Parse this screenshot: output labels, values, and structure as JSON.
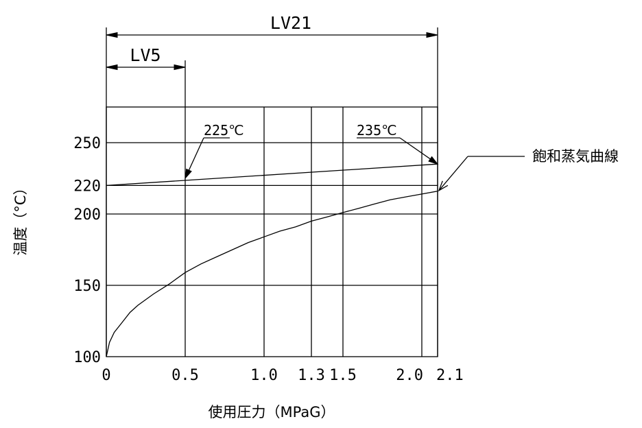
{
  "chart_data": {
    "type": "line",
    "xlabel": "使用圧力（MPaG）",
    "ylabel": "温度（°C）",
    "xlim": [
      0,
      2.1
    ],
    "ylim": [
      100,
      275
    ],
    "x_ticks": [
      {
        "value": 0,
        "label": "0"
      },
      {
        "value": 0.5,
        "label": "0.5"
      },
      {
        "value": 1.0,
        "label": "1.0"
      },
      {
        "value": 1.3,
        "label": "1.3"
      },
      {
        "value": 1.5,
        "label": "1.5"
      },
      {
        "value": 2.0,
        "label": "2.0"
      },
      {
        "value": 2.1,
        "label": "2.1"
      }
    ],
    "y_ticks": [
      {
        "value": 100,
        "label": "100"
      },
      {
        "value": 150,
        "label": "150"
      },
      {
        "value": 200,
        "label": "200"
      },
      {
        "value": 220,
        "label": "220"
      },
      {
        "value": 250,
        "label": "250"
      }
    ],
    "grid": true,
    "series": [
      {
        "name": "",
        "x": [
          0,
          2.1
        ],
        "y": [
          220,
          235
        ]
      },
      {
        "name": "飽和蒸気曲線",
        "x": [
          0,
          0.02,
          0.05,
          0.1,
          0.15,
          0.2,
          0.3,
          0.4,
          0.5,
          0.6,
          0.7,
          0.8,
          0.9,
          1.0,
          1.1,
          1.2,
          1.3,
          1.4,
          1.5,
          1.6,
          1.7,
          1.8,
          1.9,
          2.0,
          2.1
        ],
        "y": [
          100,
          110,
          117,
          124,
          131,
          136,
          144,
          151,
          159,
          165,
          170,
          175,
          180,
          184,
          188,
          191,
          195,
          198,
          201,
          204,
          207,
          210,
          212,
          214,
          216
        ]
      }
    ],
    "annotations": [
      {
        "text": "225℃",
        "x": 0.5,
        "y": 225
      },
      {
        "text": "235℃",
        "x": 2.1,
        "y": 235
      },
      {
        "text": "飽和蒸気曲線",
        "x": 2.1,
        "y": 216
      }
    ],
    "dimensions": [
      {
        "label": "LV5",
        "x_start": 0,
        "x_end": 0.5
      },
      {
        "label": "LV21",
        "x_start": 0,
        "x_end": 2.1
      }
    ]
  }
}
